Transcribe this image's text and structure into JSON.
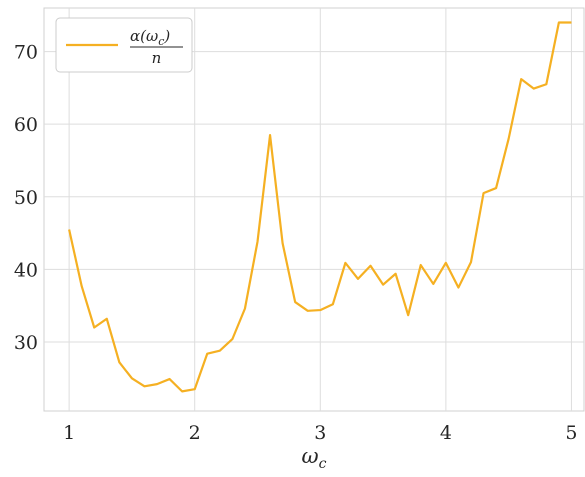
{
  "chart_data": {
    "type": "line",
    "title": "",
    "xlabel": "ω",
    "xlabel_sub": "c",
    "ylabel": "",
    "xlim": [
      0.8,
      5.1
    ],
    "ylim": [
      20.5,
      76
    ],
    "xticks": [
      1,
      2,
      3,
      4,
      5
    ],
    "yticks": [
      30,
      40,
      50,
      60,
      70
    ],
    "grid": true,
    "legend_placement": "top-left",
    "series": [
      {
        "name": "α(ω_c)/n",
        "color": "#f5b022",
        "x": [
          1.0,
          1.1,
          1.2,
          1.3,
          1.4,
          1.5,
          1.6,
          1.7,
          1.8,
          1.9,
          2.0,
          2.1,
          2.2,
          2.3,
          2.4,
          2.5,
          2.6,
          2.7,
          2.8,
          2.9,
          3.0,
          3.1,
          3.2,
          3.3,
          3.4,
          3.5,
          3.6,
          3.7,
          3.8,
          3.9,
          4.0,
          4.1,
          4.2,
          4.3,
          4.4,
          4.5,
          4.6,
          4.7,
          4.8,
          4.9,
          5.0
        ],
        "y": [
          45.5,
          37.7,
          32.0,
          33.2,
          27.2,
          25.0,
          23.9,
          24.2,
          24.9,
          23.2,
          23.5,
          28.4,
          28.8,
          30.4,
          34.6,
          43.8,
          58.5,
          43.6,
          35.5,
          34.3,
          34.4,
          35.2,
          40.9,
          38.7,
          40.5,
          37.9,
          39.4,
          33.7,
          40.6,
          38.0,
          40.9,
          37.5,
          41.0,
          50.5,
          51.2,
          58.0,
          66.2,
          64.9,
          65.5,
          74.0,
          74.0
        ]
      }
    ],
    "legend": {
      "label_numerator_alpha": "α(",
      "label_numerator_omega": "ω",
      "label_numerator_sub": "c",
      "label_numerator_close": ")",
      "label_denominator": "n"
    }
  }
}
